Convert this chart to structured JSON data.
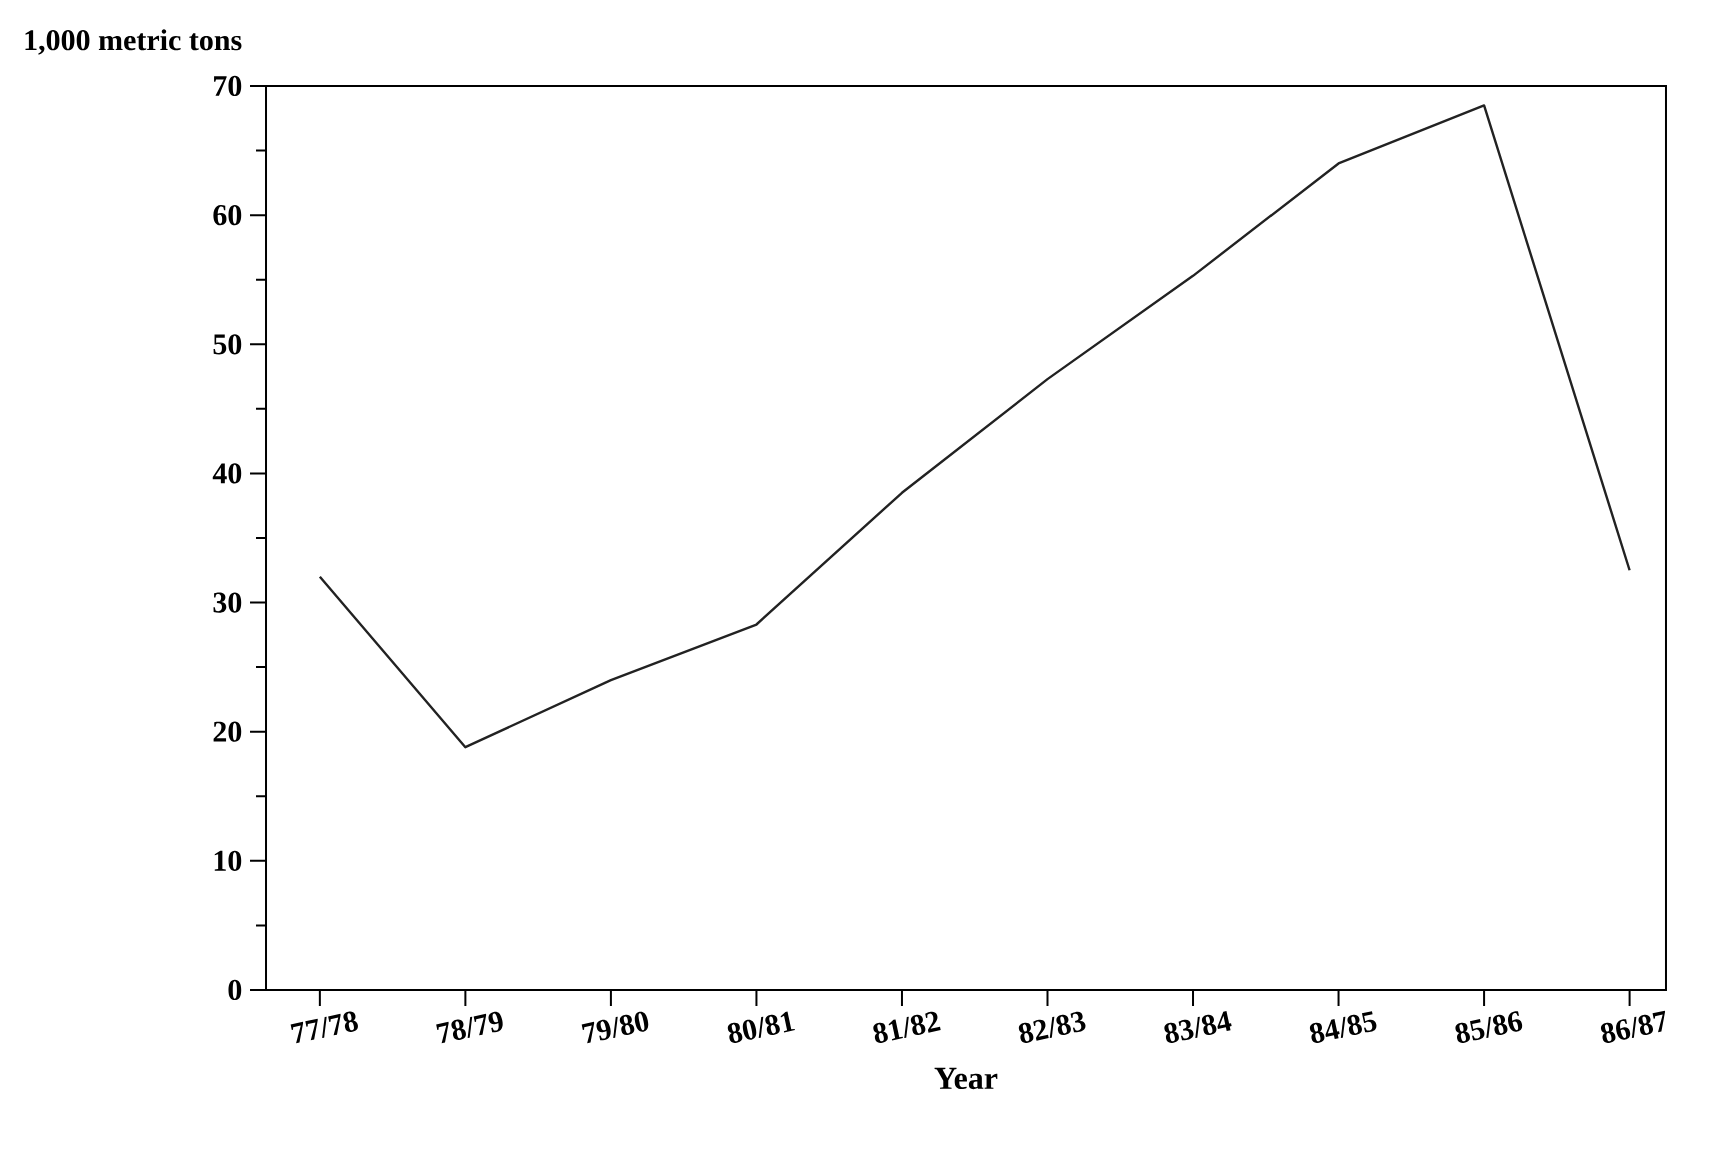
{
  "chart_data": {
    "type": "line",
    "ylabel": "1,000 metric tons",
    "xlabel": "Year",
    "categories": [
      "77/78",
      "78/79",
      "79/80",
      "80/81",
      "81/82",
      "82/83",
      "83/84",
      "84/85",
      "85/86",
      "86/87"
    ],
    "values": [
      32,
      18.8,
      24,
      28.3,
      38.5,
      47.3,
      55.3,
      64,
      68.5,
      32.5
    ],
    "color": "#222222",
    "ylim": [
      0,
      70
    ],
    "yticks": [
      0,
      10,
      20,
      30,
      40,
      50,
      60,
      70
    ],
    "grid": false,
    "marker": "none",
    "line_style": "solid"
  }
}
